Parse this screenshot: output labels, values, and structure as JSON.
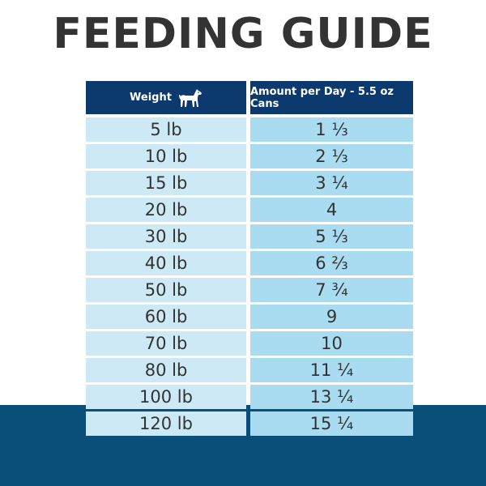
{
  "title": "FEEDING GUIDE",
  "colors": {
    "title": "#333333",
    "header_bg": "#0d3a6e",
    "weight_col_bg": "#cde9f6",
    "amount_col_bg": "#a9dbf1",
    "bottom_band": "#0a4f79"
  },
  "table": {
    "header": {
      "weight": "Weight",
      "weight_icon": "dog-icon",
      "amount": "Amount per Day - 5.5 oz Cans"
    },
    "rows": [
      {
        "weight": "5 lb",
        "amount": "1 ⅓"
      },
      {
        "weight": "10 lb",
        "amount": "2 ⅓"
      },
      {
        "weight": "15 lb",
        "amount": "3 ¼"
      },
      {
        "weight": "20 lb",
        "amount": "4"
      },
      {
        "weight": "30 lb",
        "amount": "5 ⅓"
      },
      {
        "weight": "40 lb",
        "amount": "6 ⅔"
      },
      {
        "weight": "50 lb",
        "amount": "7 ¾"
      },
      {
        "weight": "60 lb",
        "amount": "9"
      },
      {
        "weight": "70 lb",
        "amount": "10"
      },
      {
        "weight": "80 lb",
        "amount": "11 ¼"
      },
      {
        "weight": "100 lb",
        "amount": "13 ¼"
      },
      {
        "weight": "120 lb",
        "amount": "15 ¼"
      }
    ]
  }
}
